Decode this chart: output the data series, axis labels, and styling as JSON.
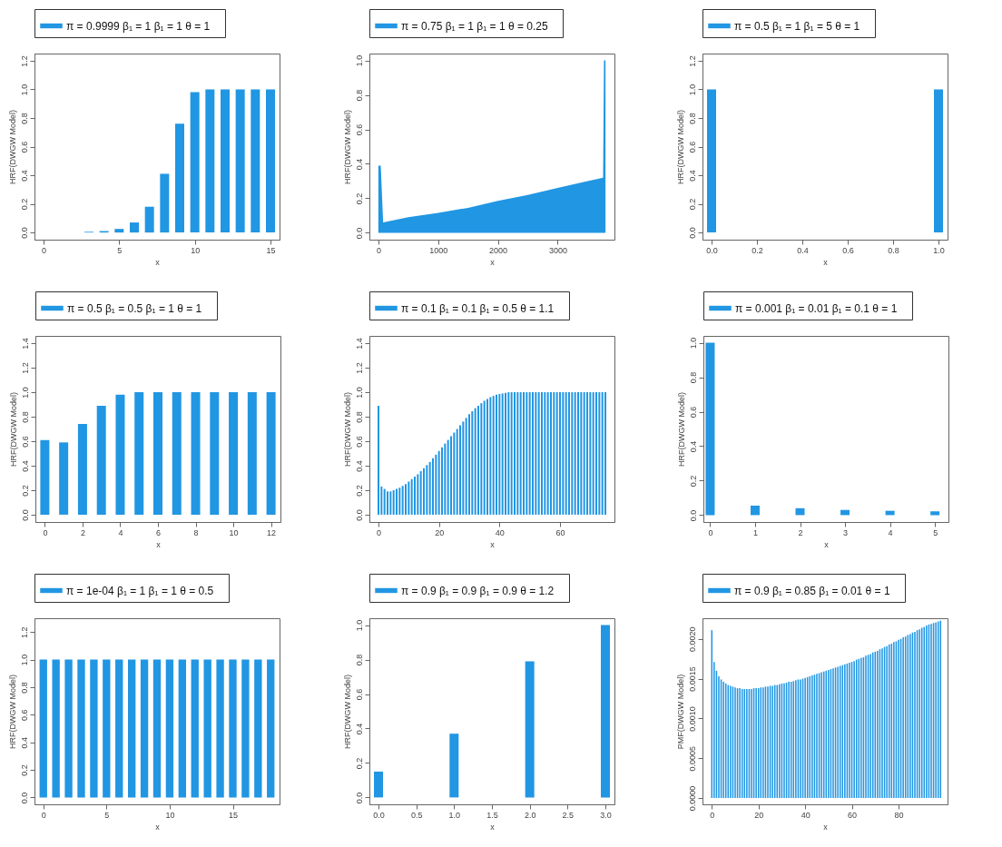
{
  "chart_data": [
    {
      "type": "bar",
      "xlabel": "x",
      "ylabel": "HRF(DWGW Model)",
      "legend": "top",
      "x": [
        0,
        1,
        2,
        3,
        4,
        5,
        6,
        7,
        8,
        9,
        10,
        11,
        12,
        13,
        14,
        15
      ],
      "series": [
        {
          "name": "π = 0.9999  β₁ = 1  β₁ = 1  θ = 1",
          "color": "#2196e3",
          "values": [
            0,
            0,
            0,
            0.005,
            0.01,
            0.025,
            0.07,
            0.18,
            0.41,
            0.76,
            0.98,
            1,
            1,
            1,
            1,
            1
          ]
        }
      ],
      "xlim": [
        -0.6,
        15.6
      ],
      "xticks": [
        0,
        5,
        10,
        15
      ],
      "ylim": [
        -0.05,
        1.25
      ],
      "yticks": [
        {
          "value": 0,
          "label": "0.0"
        },
        0.2,
        0.4,
        0.6,
        0.8,
        {
          "value": 1,
          "label": "1.0"
        },
        1.2
      ]
    },
    {
      "type": "area",
      "xlabel": "x",
      "ylabel": "HRF(DWGW Model)",
      "legend": "top",
      "x": [
        0,
        40,
        80,
        500,
        1000,
        1500,
        2000,
        2500,
        3000,
        3500,
        3760,
        3775,
        3800
      ],
      "series": [
        {
          "name": "π = 0.75  β₁ = 1  β₁ = 1  θ = 0.25",
          "color": "#2196e3",
          "values": [
            0.39,
            0.39,
            0.06,
            0.09,
            0.115,
            0.145,
            0.185,
            0.22,
            0.26,
            0.3,
            0.32,
            1,
            1
          ]
        }
      ],
      "xlim": [
        -150,
        3950
      ],
      "xticks": [
        0,
        1000,
        2000,
        3000
      ],
      "ylim": [
        -0.04,
        1.04
      ],
      "yticks": [
        {
          "value": 0,
          "label": "0.0"
        },
        0.2,
        0.4,
        0.6,
        0.8,
        {
          "value": 1,
          "label": "1.0"
        }
      ]
    },
    {
      "type": "bar",
      "xlabel": "x",
      "ylabel": "HRF(DWGW Model)",
      "legend": "top",
      "x": [
        0,
        1
      ],
      "series": [
        {
          "name": "π = 0.5  β₁ = 1  β₁ = 5  θ = 1",
          "color": "#2196e3",
          "values": [
            1,
            1
          ]
        }
      ],
      "xlim": [
        -0.04,
        1.04
      ],
      "xticks": [
        {
          "value": 0,
          "label": "0.0"
        },
        0.2,
        0.4,
        0.6,
        0.8,
        {
          "value": 1,
          "label": "1.0"
        }
      ],
      "ylim": [
        -0.05,
        1.25
      ],
      "yticks": [
        {
          "value": 0,
          "label": "0.0"
        },
        0.2,
        0.4,
        0.6,
        0.8,
        {
          "value": 1,
          "label": "1.0"
        },
        1.2
      ]
    },
    {
      "type": "bar",
      "xlabel": "x",
      "ylabel": "HRF(DWGW Model)",
      "legend": "top",
      "x": [
        0,
        1,
        2,
        3,
        4,
        5,
        6,
        7,
        8,
        9,
        10,
        11,
        12
      ],
      "series": [
        {
          "name": "π = 0.5  β₁ = 0.5  β₁ = 1  θ = 1",
          "color": "#2196e3",
          "values": [
            0.61,
            0.59,
            0.74,
            0.89,
            0.98,
            1,
            1,
            1,
            1,
            1,
            1,
            1,
            1
          ]
        }
      ],
      "xlim": [
        -0.5,
        12.5
      ],
      "xticks": [
        0,
        2,
        4,
        6,
        8,
        10,
        12
      ],
      "ylim": [
        -0.06,
        1.46
      ],
      "yticks": [
        {
          "value": 0,
          "label": "0.0"
        },
        0.2,
        0.4,
        0.6,
        0.8,
        {
          "value": 1,
          "label": "1.0"
        },
        1.2,
        1.4
      ]
    },
    {
      "type": "bar",
      "xlabel": "x",
      "ylabel": "HRF(DWGW Model)",
      "legend": "top",
      "x": [
        0,
        1,
        2,
        3,
        4,
        5,
        6,
        7,
        8,
        9,
        10,
        11,
        12,
        13,
        14,
        15,
        16,
        17,
        18,
        19,
        20,
        21,
        22,
        23,
        24,
        25,
        26,
        27,
        28,
        29,
        30,
        31,
        32,
        33,
        34,
        35,
        36,
        37,
        38,
        39,
        40,
        41,
        42,
        43,
        44,
        45,
        46,
        47,
        48,
        49,
        50,
        51,
        52,
        53,
        54,
        55,
        56,
        57,
        58,
        59,
        60,
        61,
        62,
        63,
        64,
        65,
        66,
        67,
        68,
        69,
        70,
        71,
        72,
        73,
        74,
        75
      ],
      "series": [
        {
          "name": "π = 0.1  β₁ = 0.1  β₁ = 0.5  θ = 1.1",
          "color": "#2196e3",
          "values": [
            0.89,
            0.23,
            0.21,
            0.19,
            0.19,
            0.2,
            0.21,
            0.22,
            0.235,
            0.25,
            0.27,
            0.29,
            0.31,
            0.33,
            0.355,
            0.38,
            0.405,
            0.43,
            0.46,
            0.49,
            0.52,
            0.55,
            0.58,
            0.61,
            0.64,
            0.67,
            0.7,
            0.73,
            0.76,
            0.79,
            0.82,
            0.845,
            0.87,
            0.89,
            0.91,
            0.93,
            0.945,
            0.96,
            0.97,
            0.98,
            0.985,
            0.99,
            0.995,
            1,
            1,
            1,
            1,
            1,
            1,
            1,
            1,
            1,
            1,
            1,
            1,
            1,
            1,
            1,
            1,
            1,
            1,
            1,
            1,
            1,
            1,
            1,
            1,
            1,
            1,
            1,
            1,
            1,
            1,
            1,
            1,
            1
          ]
        }
      ],
      "xlim": [
        -3,
        78
      ],
      "xticks": [
        0,
        20,
        40,
        60
      ],
      "ylim": [
        -0.06,
        1.46
      ],
      "yticks": [
        {
          "value": 0,
          "label": "0.0"
        },
        0.2,
        0.4,
        0.6,
        0.8,
        {
          "value": 1,
          "label": "1.0"
        },
        1.2,
        1.4
      ]
    },
    {
      "type": "bar",
      "xlabel": "x",
      "ylabel": "HRF(DWGW Model)",
      "legend": "top",
      "x": [
        0,
        1,
        2,
        3,
        4,
        5
      ],
      "series": [
        {
          "name": "π = 0.001  β₁ = 0.01  β₁ = 0.1  θ = 1",
          "color": "#2196e3",
          "values": [
            1,
            0.055,
            0.04,
            0.03,
            0.025,
            0.022
          ]
        }
      ],
      "xlim": [
        -0.15,
        5.3
      ],
      "xticks": [
        0,
        1,
        2,
        3,
        4,
        5
      ],
      "ylim": [
        -0.04,
        1.04
      ],
      "yticks": [
        {
          "value": 0,
          "label": "0.0"
        },
        0.2,
        0.4,
        0.6,
        0.8,
        {
          "value": 1,
          "label": "1.0"
        }
      ]
    },
    {
      "type": "bar",
      "xlabel": "x",
      "ylabel": "HRF(DWGW Model)",
      "legend": "top",
      "x": [
        0,
        1,
        2,
        3,
        4,
        5,
        6,
        7,
        8,
        9,
        10,
        11,
        12,
        13,
        14,
        15,
        16,
        17,
        18
      ],
      "series": [
        {
          "name": "π = 1e-04  β₁ = 1  β₁ = 1  θ = 0.5",
          "color": "#2196e3",
          "values": [
            1,
            1,
            1,
            1,
            1,
            1,
            1,
            1,
            1,
            1,
            1,
            1,
            1,
            1,
            1,
            1,
            1,
            1,
            1
          ]
        }
      ],
      "xlim": [
        -0.7,
        18.7
      ],
      "xticks": [
        0,
        5,
        10,
        15
      ],
      "ylim": [
        -0.05,
        1.3
      ],
      "yticks": [
        {
          "value": 0,
          "label": "0.0"
        },
        0.2,
        0.4,
        0.6,
        0.8,
        {
          "value": 1,
          "label": "1.0"
        },
        1.2
      ]
    },
    {
      "type": "bar",
      "xlabel": "x",
      "ylabel": "HRF(DWGW Model)",
      "legend": "top",
      "x": [
        0,
        1,
        2,
        3
      ],
      "series": [
        {
          "name": "π = 0.9  β₁ = 0.9  β₁ = 0.9  θ = 1.2",
          "color": "#2196e3",
          "values": [
            0.15,
            0.37,
            0.79,
            1
          ]
        }
      ],
      "xlim": [
        -0.12,
        3.12
      ],
      "xticks": [
        {
          "value": 0,
          "label": "0.0"
        },
        0.5,
        {
          "value": 1,
          "label": "1.0"
        },
        1.5,
        {
          "value": 2,
          "label": "2.0"
        },
        2.5,
        {
          "value": 3,
          "label": "3.0"
        }
      ],
      "ylim": [
        -0.04,
        1.04
      ],
      "yticks": [
        {
          "value": 0,
          "label": "0.0"
        },
        0.2,
        0.4,
        0.6,
        0.8,
        {
          "value": 1,
          "label": "1.0"
        }
      ]
    },
    {
      "type": "bar",
      "xlabel": "x",
      "ylabel": "PMF(DWGW Model)",
      "legend": "top",
      "x": [
        0,
        1,
        2,
        3,
        4,
        5,
        6,
        7,
        8,
        9,
        10,
        11,
        12,
        13,
        14,
        15,
        16,
        17,
        18,
        19,
        20,
        21,
        22,
        23,
        24,
        25,
        26,
        27,
        28,
        29,
        30,
        31,
        32,
        33,
        34,
        35,
        36,
        37,
        38,
        39,
        40,
        41,
        42,
        43,
        44,
        45,
        46,
        47,
        48,
        49,
        50,
        51,
        52,
        53,
        54,
        55,
        56,
        57,
        58,
        59,
        60,
        61,
        62,
        63,
        64,
        65,
        66,
        67,
        68,
        69,
        70,
        71,
        72,
        73,
        74,
        75,
        76,
        77,
        78,
        79,
        80,
        81,
        82,
        83,
        84,
        85,
        86,
        87,
        88,
        89,
        90,
        91,
        92,
        93,
        94,
        95,
        96,
        97,
        98
      ],
      "series": [
        {
          "name": "π = 0.9  β₁ = 0.85  β₁ = 0.01  θ = 1",
          "color": "#2196e3",
          "values": [
            0.00211,
            0.00171,
            0.0016,
            0.00153,
            0.00149,
            0.00146,
            0.00144,
            0.00142,
            0.00141,
            0.0014,
            0.00139,
            0.00138,
            0.00138,
            0.00137,
            0.00137,
            0.00137,
            0.00137,
            0.00137,
            0.00138,
            0.00138,
            0.00138,
            0.00139,
            0.00139,
            0.0014,
            0.0014,
            0.00141,
            0.00141,
            0.00142,
            0.00142,
            0.00143,
            0.00144,
            0.00144,
            0.00145,
            0.00146,
            0.00146,
            0.00147,
            0.00148,
            0.00149,
            0.00149,
            0.0015,
            0.00151,
            0.00152,
            0.00153,
            0.00154,
            0.00155,
            0.00156,
            0.00157,
            0.00158,
            0.00159,
            0.0016,
            0.00161,
            0.00162,
            0.00163,
            0.00164,
            0.00165,
            0.00166,
            0.00167,
            0.00168,
            0.00169,
            0.0017,
            0.00171,
            0.00172,
            0.00174,
            0.00175,
            0.00176,
            0.00177,
            0.00179,
            0.0018,
            0.00181,
            0.00183,
            0.00184,
            0.00185,
            0.00187,
            0.00188,
            0.0019,
            0.00191,
            0.00193,
            0.00194,
            0.00196,
            0.00197,
            0.00199,
            0.002,
            0.00202,
            0.00203,
            0.00205,
            0.00206,
            0.00208,
            0.00209,
            0.00211,
            0.00212,
            0.00214,
            0.00215,
            0.00217,
            0.00218,
            0.00219,
            0.0022,
            0.00221,
            0.00222,
            0.00223
          ]
        }
      ],
      "xlim": [
        -4,
        101
      ],
      "xticks": [
        0,
        20,
        40,
        60,
        80
      ],
      "ylim": [
        -8e-05,
        0.00226
      ],
      "yticks": [
        {
          "value": 0,
          "label": "0.0000"
        },
        {
          "value": 0.0005,
          "label": "0.0005"
        },
        {
          "value": 0.001,
          "label": "0.0010"
        },
        {
          "value": 0.0015,
          "label": "0.0015"
        },
        {
          "value": 0.002,
          "label": "0.0020"
        }
      ]
    }
  ]
}
